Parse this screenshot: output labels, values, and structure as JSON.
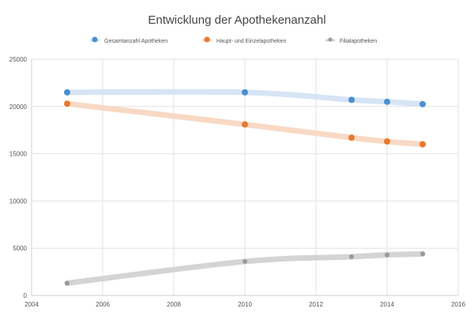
{
  "chart_data": {
    "type": "line",
    "title": "Entwicklung der Apothekenanzahl",
    "xlabel": "",
    "ylabel": "",
    "xlim": [
      2004,
      2016
    ],
    "ylim": [
      0,
      25000
    ],
    "xticks": [
      2004,
      2006,
      2008,
      2010,
      2012,
      2014,
      2016
    ],
    "yticks": [
      0,
      5000,
      10000,
      15000,
      20000,
      25000
    ],
    "grid": true,
    "smooth": true,
    "legend_position": "top",
    "series": [
      {
        "name": "Gesamtanzahl Apotheken",
        "color": "#4a90d0",
        "line_color": "#d6e4f5",
        "x": [
          2005,
          2010,
          2013,
          2014,
          2015
        ],
        "y": [
          21500,
          21500,
          20700,
          20500,
          20250
        ]
      },
      {
        "name": "Haupt- und Einzelapotheken",
        "color": "#e8782e",
        "line_color": "#f8d9c4",
        "x": [
          2005,
          2010,
          2013,
          2014,
          2015
        ],
        "y": [
          20300,
          18100,
          16700,
          16300,
          16000
        ]
      },
      {
        "name": "Filialapotheken",
        "color": "#9a9a9a",
        "line_color": "#d4d4d4",
        "x": [
          2005,
          2010,
          2013,
          2014,
          2015
        ],
        "y": [
          1300,
          3600,
          4100,
          4300,
          4400
        ]
      }
    ]
  }
}
